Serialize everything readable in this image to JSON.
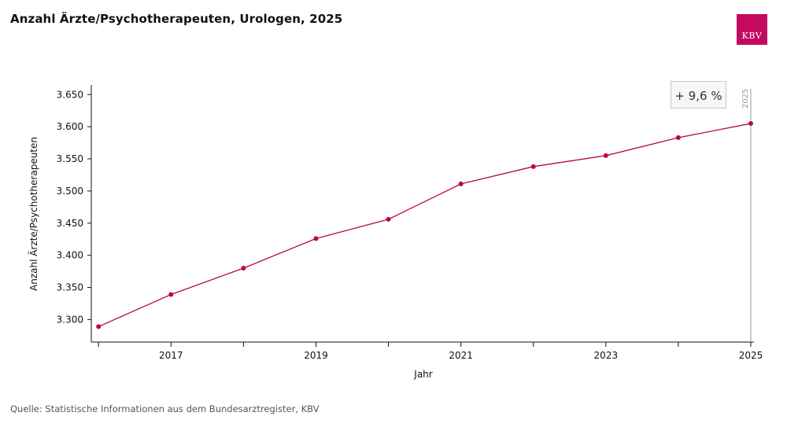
{
  "chart_data": {
    "type": "line",
    "title": "Anzahl Ärzte/Psychotherapeuten, Urologen, 2025",
    "xlabel": "Jahr",
    "ylabel": "Anzahl Ärzte/Psychotherapeuten",
    "x": [
      2016,
      2017,
      2018,
      2019,
      2020,
      2021,
      2022,
      2023,
      2024,
      2025
    ],
    "series": [
      {
        "values": [
          3289,
          3339,
          3380,
          3426,
          3456,
          3511,
          3538,
          3555,
          3583,
          3605
        ],
        "color": "#b5084f"
      }
    ],
    "xlim": [
      2015.9,
      2025
    ],
    "ylim": [
      3265,
      3665
    ],
    "yticks": [
      3300,
      3350,
      3400,
      3450,
      3500,
      3550,
      3600,
      3650
    ],
    "ytick_labels": [
      "3.300",
      "3.350",
      "3.400",
      "3.450",
      "3.500",
      "3.550",
      "3.600",
      "3.650"
    ],
    "xticks_major": [
      2017,
      2019,
      2021,
      2023,
      2025
    ],
    "xtick_labels": [
      "2017",
      "2019",
      "2021",
      "2023",
      "2025"
    ],
    "xticks_minor": [
      2016,
      2018,
      2020,
      2022,
      2024
    ],
    "grid": false,
    "annotation": {
      "text": "+ 9,6 %"
    },
    "marker_line": {
      "x": 2025,
      "label": "2025"
    }
  },
  "logo": {
    "text": "KBV",
    "color": "#c40a5c"
  },
  "source": "Quelle: Statistische Informationen aus dem Bundesarztregister, KBV"
}
